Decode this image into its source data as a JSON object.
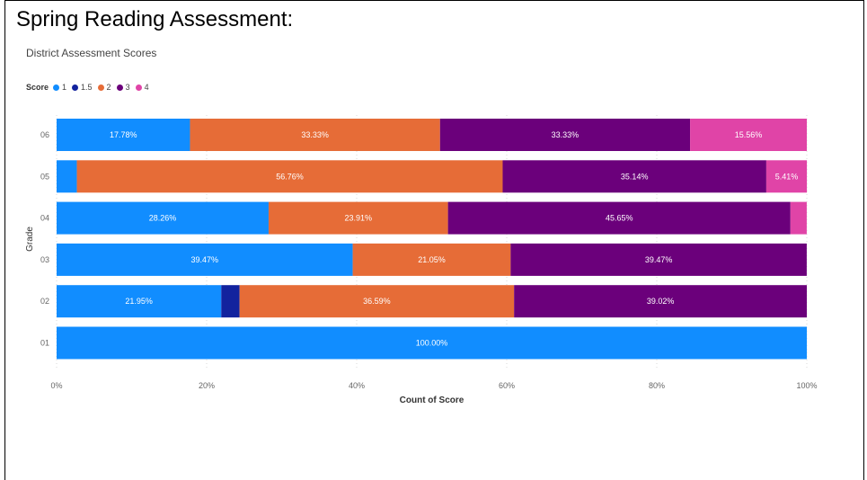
{
  "page": {
    "title": "Spring Reading Assessment:"
  },
  "chart_data": {
    "type": "bar",
    "orientation": "horizontal",
    "stacked": "100%",
    "title": "District Assessment Scores",
    "xlabel": "Count of Score",
    "ylabel": "Grade",
    "legend_title": "Score",
    "legend_position": "top-left",
    "grid": true,
    "xlim": [
      0,
      100
    ],
    "x_ticks": [
      "0%",
      "20%",
      "40%",
      "60%",
      "80%",
      "100%"
    ],
    "categories": [
      "06",
      "05",
      "04",
      "03",
      "02",
      "01"
    ],
    "series": [
      {
        "name": "1",
        "color": "#118DFF",
        "values": [
          17.78,
          2.7,
          28.26,
          39.47,
          21.95,
          100.0
        ],
        "labels": [
          "17.78%",
          "",
          "28.26%",
          "39.47%",
          "21.95%",
          "100.00%"
        ]
      },
      {
        "name": "1.5",
        "color": "#12239E",
        "values": [
          0,
          0,
          0,
          0,
          2.44,
          0
        ],
        "labels": [
          "",
          "",
          "",
          "",
          "",
          ""
        ]
      },
      {
        "name": "2",
        "color": "#E66C37",
        "values": [
          33.33,
          56.76,
          23.91,
          21.05,
          36.59,
          0
        ],
        "labels": [
          "33.33%",
          "56.76%",
          "23.91%",
          "21.05%",
          "36.59%",
          ""
        ]
      },
      {
        "name": "3",
        "color": "#6B007B",
        "values": [
          33.33,
          35.14,
          45.65,
          39.47,
          39.02,
          0
        ],
        "labels": [
          "33.33%",
          "35.14%",
          "45.65%",
          "39.47%",
          "39.02%",
          ""
        ]
      },
      {
        "name": "4",
        "color": "#E044A7",
        "values": [
          15.56,
          5.41,
          2.17,
          0,
          0,
          0
        ],
        "labels": [
          "15.56%",
          "5.41%",
          "",
          "",
          "",
          ""
        ]
      }
    ]
  }
}
